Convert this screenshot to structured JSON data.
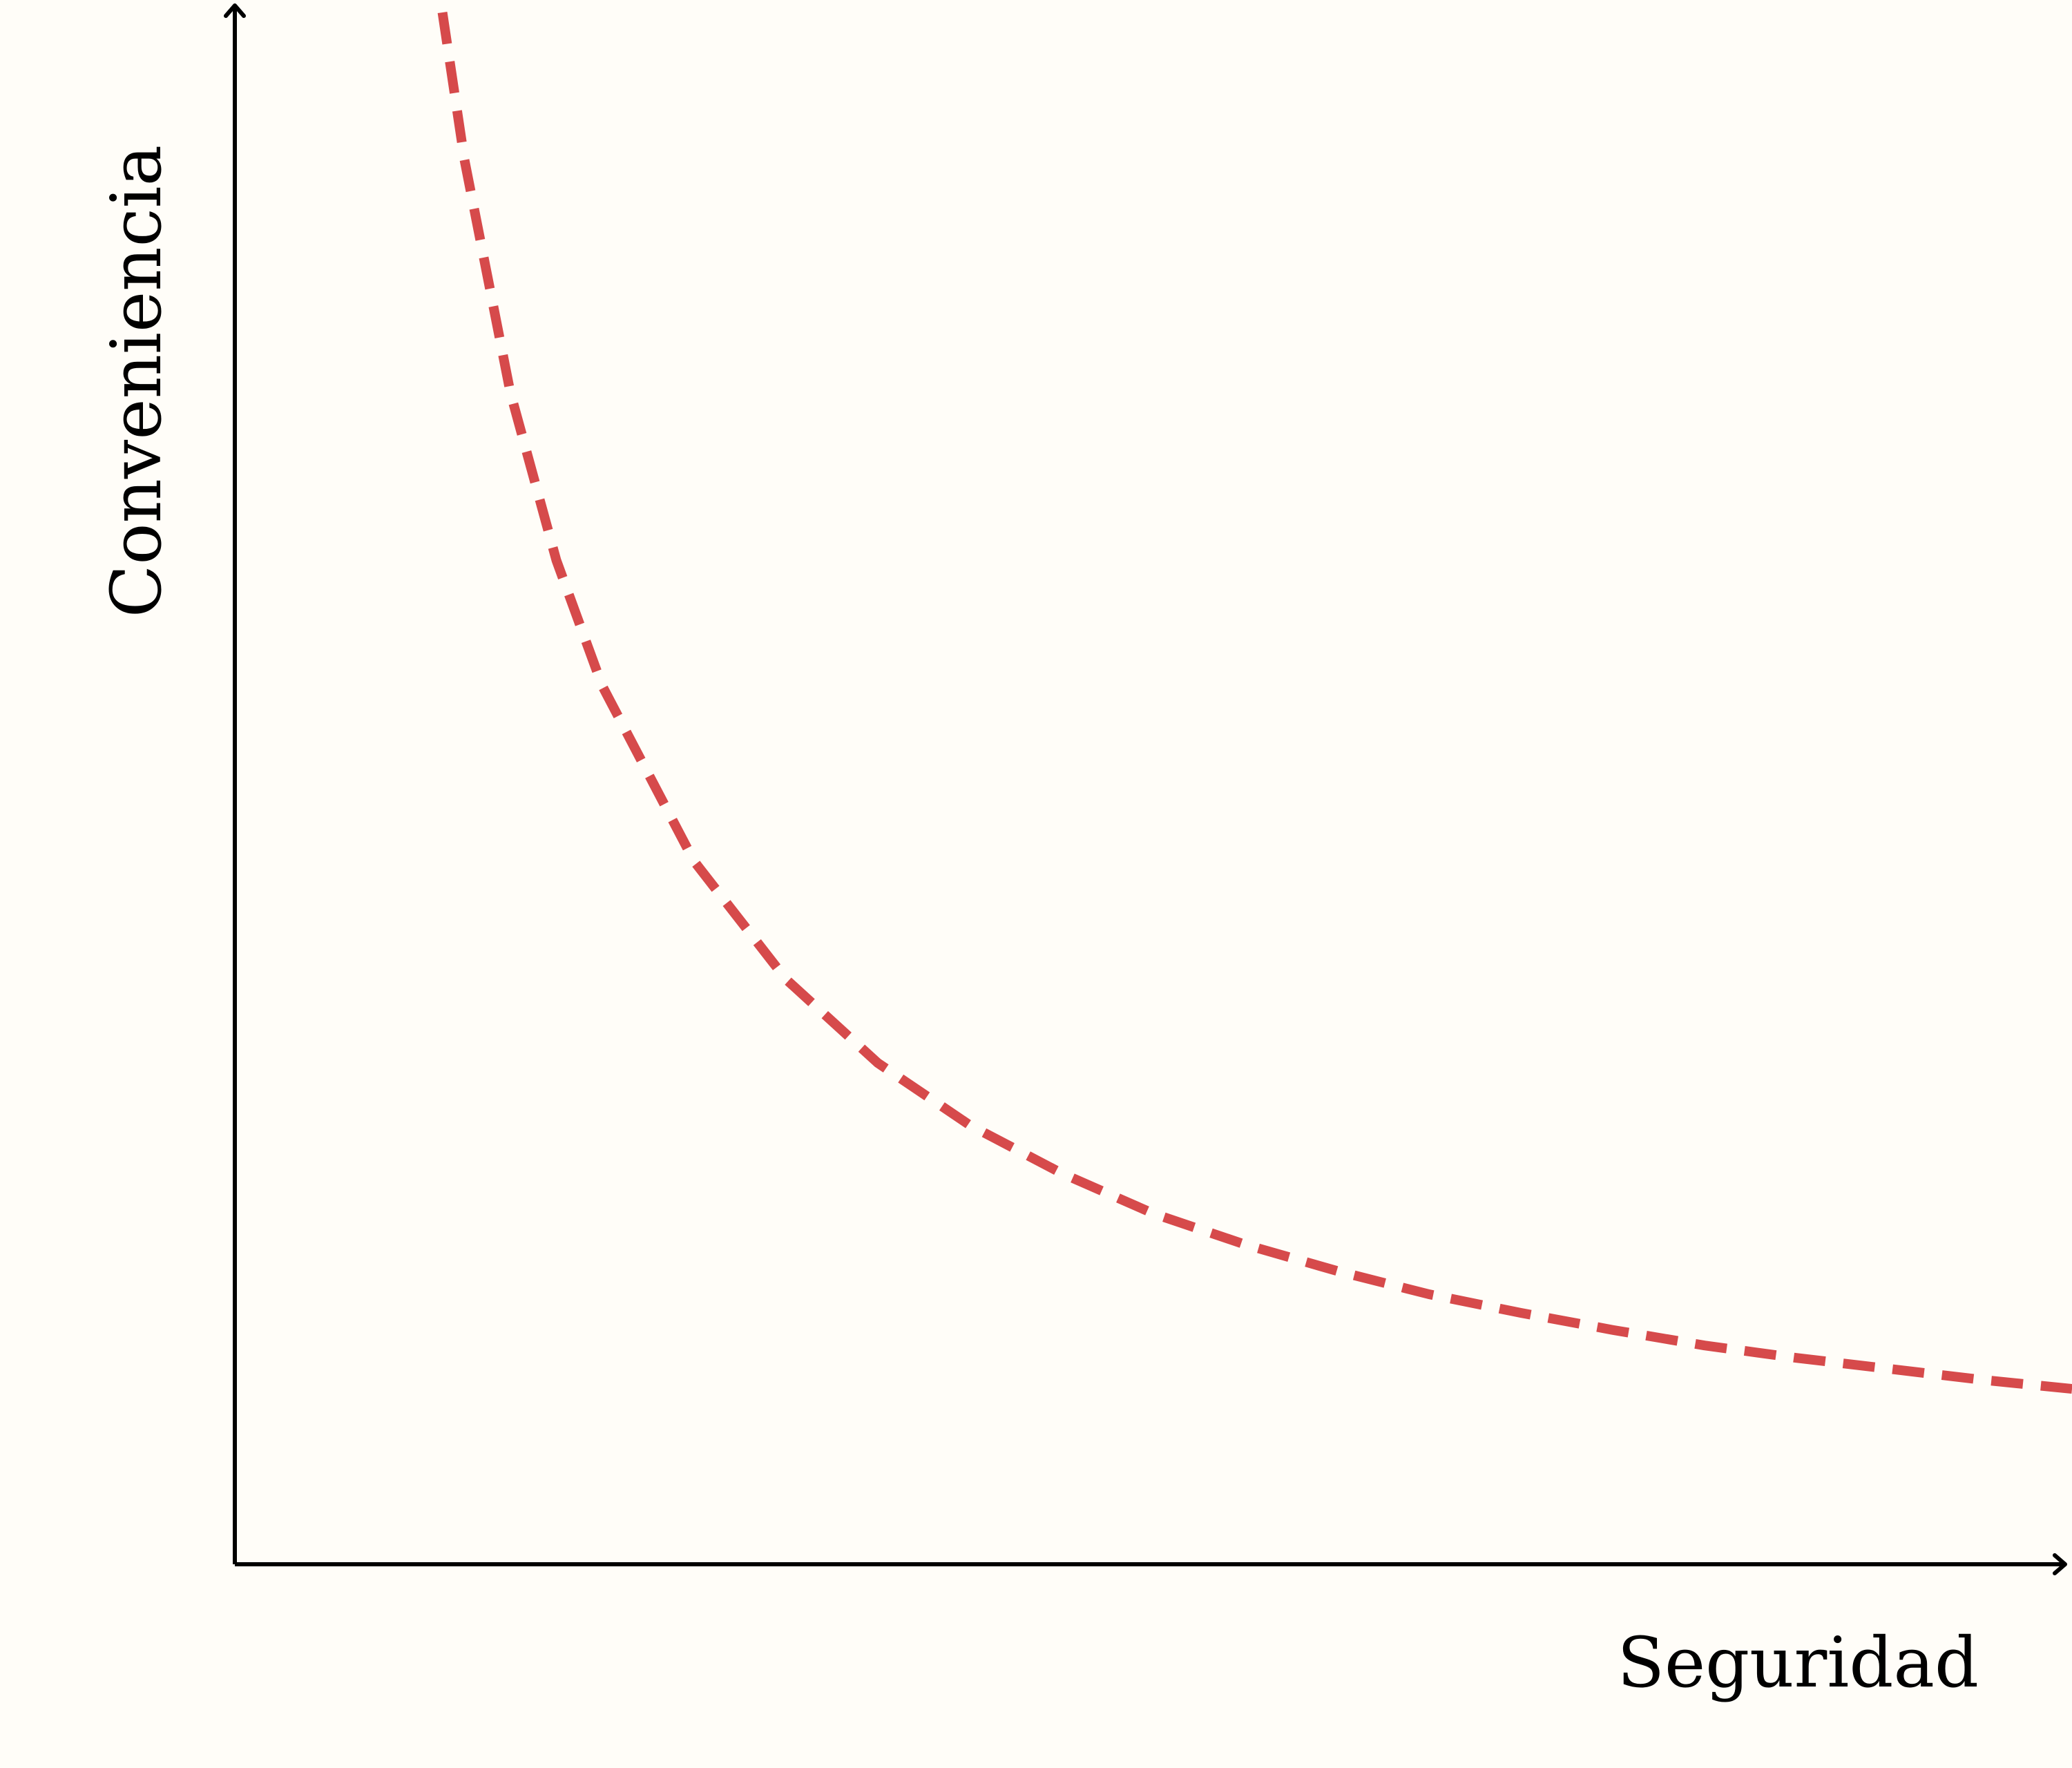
{
  "chart_data": {
    "type": "line",
    "title": "",
    "xlabel": "Seguridad",
    "ylabel": "Conveniencia",
    "xlim": [
      0,
      10
    ],
    "ylim": [
      0,
      10
    ],
    "grid": false,
    "legend": "none",
    "series": [
      {
        "x": [
          1.13,
          1.25,
          1.5,
          1.75,
          2.0,
          2.5,
          3.0,
          3.5,
          4.0,
          4.5,
          5.0,
          5.5,
          6.0,
          6.5,
          7.0,
          7.5,
          8.0,
          8.5,
          9.0,
          9.5,
          10.0
        ],
        "y": [
          10.0,
          9.05,
          7.55,
          6.47,
          5.66,
          4.53,
          3.77,
          3.23,
          2.83,
          2.52,
          2.26,
          2.06,
          1.89,
          1.74,
          1.62,
          1.51,
          1.41,
          1.33,
          1.26,
          1.19,
          1.13
        ],
        "color": "#d64a4b",
        "style": "dashed"
      }
    ]
  }
}
